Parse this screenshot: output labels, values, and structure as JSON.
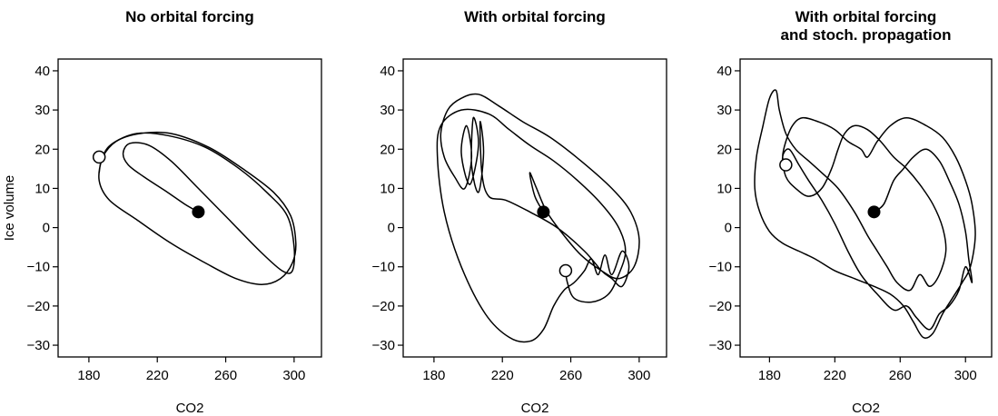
{
  "chart_data": [
    {
      "type": "line",
      "title": [
        "No orbital forcing"
      ],
      "xlabel": "CO2",
      "ylabel": "Ice volume",
      "xlim": [
        162,
        316
      ],
      "ylim": [
        -33,
        43
      ],
      "xticks": [
        180,
        220,
        260,
        300
      ],
      "yticks": [
        -30,
        -20,
        -10,
        0,
        10,
        20,
        30,
        40
      ],
      "start": {
        "x": 244,
        "y": 4
      },
      "end": {
        "x": 186,
        "y": 18
      },
      "trajectory": [
        [
          244,
          4
        ],
        [
          236,
          6
        ],
        [
          226,
          9
        ],
        [
          212,
          13
        ],
        [
          203,
          16
        ],
        [
          200,
          19
        ],
        [
          204,
          21.5
        ],
        [
          215,
          21
        ],
        [
          228,
          17
        ],
        [
          244,
          10
        ],
        [
          262,
          2
        ],
        [
          280,
          -6
        ],
        [
          293,
          -11
        ],
        [
          299,
          -11
        ],
        [
          300,
          -5
        ],
        [
          296,
          3
        ],
        [
          284,
          9
        ],
        [
          268,
          15
        ],
        [
          248,
          20.5
        ],
        [
          226,
          23.5
        ],
        [
          208,
          24
        ],
        [
          194,
          21.5
        ],
        [
          188,
          18
        ],
        [
          186,
          12
        ],
        [
          192,
          7
        ],
        [
          208,
          2
        ],
        [
          228,
          -4
        ],
        [
          248,
          -9
        ],
        [
          266,
          -13
        ],
        [
          281,
          -14.5
        ],
        [
          292,
          -13
        ],
        [
          299,
          -9
        ],
        [
          301,
          -4
        ],
        [
          298,
          3
        ],
        [
          288,
          9
        ],
        [
          270,
          15
        ],
        [
          250,
          20.5
        ],
        [
          228,
          24
        ],
        [
          210,
          24
        ],
        [
          196,
          22
        ],
        [
          188,
          18
        ],
        [
          186,
          14
        ]
      ]
    },
    {
      "type": "line",
      "title": [
        "With orbital forcing"
      ],
      "xlabel": "CO2",
      "ylabel": "",
      "xlim": [
        162,
        316
      ],
      "ylim": [
        -33,
        43
      ],
      "xticks": [
        180,
        220,
        260,
        300
      ],
      "yticks": [
        -30,
        -20,
        -10,
        0,
        10,
        20,
        30,
        40
      ],
      "start": {
        "x": 244,
        "y": 4
      },
      "end": {
        "x": 257,
        "y": -11
      },
      "trajectory": [
        [
          244,
          4
        ],
        [
          239,
          8
        ],
        [
          236,
          14
        ],
        [
          240,
          10
        ],
        [
          246,
          4
        ],
        [
          256,
          -2
        ],
        [
          266,
          -7
        ],
        [
          278,
          -11
        ],
        [
          288,
          -13
        ],
        [
          297,
          -10
        ],
        [
          300,
          -3
        ],
        [
          295,
          4
        ],
        [
          284,
          10
        ],
        [
          266,
          17
        ],
        [
          248,
          23
        ],
        [
          232,
          27
        ],
        [
          218,
          31
        ],
        [
          206,
          34
        ],
        [
          196,
          33
        ],
        [
          188,
          30
        ],
        [
          184,
          24
        ],
        [
          186,
          18
        ],
        [
          192,
          13
        ],
        [
          198,
          10
        ],
        [
          202,
          18
        ],
        [
          199,
          26
        ],
        [
          196,
          19
        ],
        [
          201,
          11
        ],
        [
          206,
          21
        ],
        [
          203,
          28
        ],
        [
          202,
          16
        ],
        [
          206,
          9
        ],
        [
          209,
          19
        ],
        [
          207,
          27
        ],
        [
          208,
          14
        ],
        [
          212,
          8
        ],
        [
          222,
          7
        ],
        [
          236,
          4
        ],
        [
          252,
          0
        ],
        [
          268,
          -6
        ],
        [
          278,
          -11
        ],
        [
          284,
          -13
        ],
        [
          290,
          -15
        ],
        [
          294,
          -10
        ],
        [
          290,
          -6
        ],
        [
          284,
          -12
        ],
        [
          280,
          -7
        ],
        [
          276,
          -12
        ],
        [
          272,
          -8
        ],
        [
          268,
          -11
        ],
        [
          262,
          -14
        ],
        [
          256,
          -16
        ],
        [
          250,
          -20
        ],
        [
          244,
          -26
        ],
        [
          236,
          -29
        ],
        [
          224,
          -28
        ],
        [
          210,
          -22
        ],
        [
          196,
          -10
        ],
        [
          186,
          4
        ],
        [
          182,
          18
        ],
        [
          184,
          26
        ],
        [
          196,
          30
        ],
        [
          212,
          29
        ],
        [
          224,
          25
        ],
        [
          236,
          21
        ],
        [
          250,
          17
        ],
        [
          264,
          12
        ],
        [
          278,
          6
        ],
        [
          288,
          0
        ],
        [
          292,
          -6
        ],
        [
          288,
          -12
        ],
        [
          282,
          -17
        ],
        [
          272,
          -19
        ],
        [
          262,
          -18
        ],
        [
          258,
          -14
        ],
        [
          257,
          -11
        ]
      ]
    },
    {
      "type": "line",
      "title": [
        "With orbital forcing",
        "and stoch. propagation"
      ],
      "xlabel": "CO2",
      "ylabel": "",
      "xlim": [
        162,
        316
      ],
      "ylim": [
        -33,
        43
      ],
      "xticks": [
        180,
        220,
        260,
        300
      ],
      "yticks": [
        -30,
        -20,
        -10,
        0,
        10,
        20,
        30,
        40
      ],
      "start": {
        "x": 244,
        "y": 4
      },
      "end": {
        "x": 190,
        "y": 16
      },
      "trajectory": [
        [
          244,
          4
        ],
        [
          250,
          6
        ],
        [
          256,
          12
        ],
        [
          262,
          15
        ],
        [
          268,
          18
        ],
        [
          276,
          20
        ],
        [
          284,
          17
        ],
        [
          290,
          12
        ],
        [
          296,
          6
        ],
        [
          300,
          -1
        ],
        [
          302,
          -8
        ],
        [
          304,
          -14
        ],
        [
          300,
          -10
        ],
        [
          296,
          -16
        ],
        [
          290,
          -20
        ],
        [
          284,
          -22
        ],
        [
          278,
          -26
        ],
        [
          270,
          -23
        ],
        [
          264,
          -20
        ],
        [
          256,
          -21
        ],
        [
          246,
          -17
        ],
        [
          236,
          -12
        ],
        [
          228,
          -6
        ],
        [
          220,
          1
        ],
        [
          212,
          7
        ],
        [
          204,
          12
        ],
        [
          198,
          16
        ],
        [
          192,
          20
        ],
        [
          188,
          18
        ],
        [
          190,
          13
        ],
        [
          196,
          10
        ],
        [
          204,
          8
        ],
        [
          212,
          10
        ],
        [
          218,
          15
        ],
        [
          222,
          20
        ],
        [
          226,
          24
        ],
        [
          232,
          26
        ],
        [
          240,
          25
        ],
        [
          248,
          22
        ],
        [
          256,
          18
        ],
        [
          264,
          15
        ],
        [
          272,
          11
        ],
        [
          280,
          6
        ],
        [
          286,
          0
        ],
        [
          288,
          -6
        ],
        [
          284,
          -12
        ],
        [
          278,
          -15
        ],
        [
          272,
          -12
        ],
        [
          266,
          -16
        ],
        [
          258,
          -14
        ],
        [
          252,
          -10
        ],
        [
          246,
          -6
        ],
        [
          240,
          -2
        ],
        [
          232,
          4
        ],
        [
          222,
          10
        ],
        [
          212,
          14
        ],
        [
          204,
          17
        ],
        [
          196,
          20
        ],
        [
          190,
          24
        ],
        [
          186,
          30
        ],
        [
          184,
          35
        ],
        [
          180,
          33
        ],
        [
          176,
          26
        ],
        [
          172,
          18
        ],
        [
          171,
          10
        ],
        [
          174,
          4
        ],
        [
          180,
          -1
        ],
        [
          188,
          -4
        ],
        [
          198,
          -6
        ],
        [
          208,
          -8
        ],
        [
          220,
          -11
        ],
        [
          232,
          -13
        ],
        [
          244,
          -15
        ],
        [
          254,
          -17
        ],
        [
          262,
          -20
        ],
        [
          268,
          -24
        ],
        [
          274,
          -28
        ],
        [
          280,
          -27
        ],
        [
          286,
          -22
        ],
        [
          292,
          -18
        ],
        [
          298,
          -14
        ],
        [
          303,
          -10
        ],
        [
          306,
          -2
        ],
        [
          304,
          6
        ],
        [
          300,
          12
        ],
        [
          294,
          18
        ],
        [
          286,
          23
        ],
        [
          276,
          26
        ],
        [
          264,
          28
        ],
        [
          254,
          26
        ],
        [
          246,
          22
        ],
        [
          240,
          18
        ],
        [
          236,
          20
        ],
        [
          228,
          22
        ],
        [
          220,
          25
        ],
        [
          210,
          27
        ],
        [
          200,
          28
        ],
        [
          194,
          26
        ],
        [
          190,
          22
        ],
        [
          188,
          18
        ],
        [
          190,
          16
        ]
      ]
    }
  ]
}
